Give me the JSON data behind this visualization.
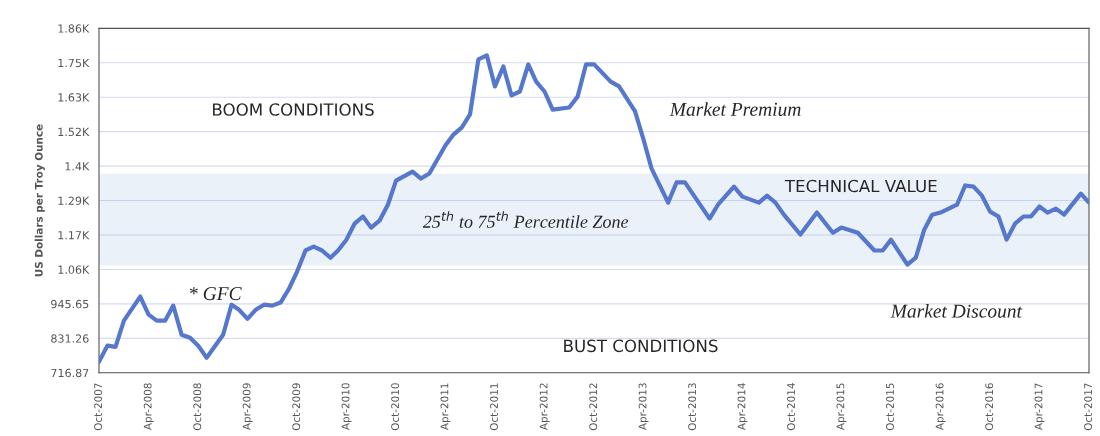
{
  "chart_data": {
    "type": "line",
    "ylabel": "US Dollars per Troy Ounce",
    "x": [
      "2007-10",
      "2007-11",
      "2007-12",
      "2008-01",
      "2008-03",
      "2008-04",
      "2008-05",
      "2008-06",
      "2008-07",
      "2008-08",
      "2008-09",
      "2008-10",
      "2008-11",
      "2009-01",
      "2009-02",
      "2009-03",
      "2009-04",
      "2009-05",
      "2009-06",
      "2009-07",
      "2009-08",
      "2009-09",
      "2009-10",
      "2009-11",
      "2009-12",
      "2010-01",
      "2010-02",
      "2010-03",
      "2010-04",
      "2010-05",
      "2010-06",
      "2010-07",
      "2010-08",
      "2010-09",
      "2010-10",
      "2010-12",
      "2011-01",
      "2011-02",
      "2011-04",
      "2011-05",
      "2011-06",
      "2011-07",
      "2011-08",
      "2011-09",
      "2011-10",
      "2011-11",
      "2011-12",
      "2012-01",
      "2012-02",
      "2012-03",
      "2012-04",
      "2012-05",
      "2012-07",
      "2012-08",
      "2012-09",
      "2012-10",
      "2012-12",
      "2013-01",
      "2013-03",
      "2013-04",
      "2013-05",
      "2013-07",
      "2013-08",
      "2013-09",
      "2013-12",
      "2014-01",
      "2014-03",
      "2014-04",
      "2014-06",
      "2014-07",
      "2014-08",
      "2014-09",
      "2014-11",
      "2015-01",
      "2015-03",
      "2015-04",
      "2015-06",
      "2015-08",
      "2015-09",
      "2015-10",
      "2015-12",
      "2016-01",
      "2016-02",
      "2016-03",
      "2016-04",
      "2016-06",
      "2016-07",
      "2016-08",
      "2016-09",
      "2016-10",
      "2016-11",
      "2016-12",
      "2017-01",
      "2017-02",
      "2017-03",
      "2017-04",
      "2017-05",
      "2017-06",
      "2017-07",
      "2017-09",
      "2017-10"
    ],
    "series": [
      {
        "color": "#5577cc",
        "values": [
          753,
          807,
          803,
          890,
          970,
          910,
          890,
          890,
          940,
          843,
          833,
          807,
          767,
          843,
          943,
          926,
          896,
          926,
          943,
          940,
          950,
          996,
          1053,
          1123,
          1136,
          1123,
          1099,
          1123,
          1159,
          1212,
          1236,
          1199,
          1222,
          1275,
          1355,
          1385,
          1362,
          1379,
          1472,
          1508,
          1532,
          1575,
          1758,
          1771,
          1668,
          1734,
          1638,
          1651,
          1741,
          1684,
          1651,
          1591,
          1598,
          1634,
          1741,
          1741,
          1684,
          1668,
          1585,
          1492,
          1395,
          1282,
          1349,
          1349,
          1229,
          1275,
          1335,
          1302,
          1282,
          1305,
          1282,
          1242,
          1176,
          1249,
          1182,
          1199,
          1182,
          1123,
          1123,
          1159,
          1076,
          1099,
          1192,
          1242,
          1249,
          1275,
          1339,
          1335,
          1305,
          1252,
          1236,
          1159,
          1212,
          1236,
          1236,
          1269,
          1249,
          1262,
          1242,
          1312,
          1282
        ]
      }
    ],
    "xlim": [
      "2007-10",
      "2017-10"
    ],
    "xticks": [
      {
        "value": "2007-10",
        "label": "Oct-2007"
      },
      {
        "value": "2008-04",
        "label": "Apr-2008"
      },
      {
        "value": "2008-10",
        "label": "Oct-2008"
      },
      {
        "value": "2009-04",
        "label": "Apr-2009"
      },
      {
        "value": "2009-10",
        "label": "Oct-2009"
      },
      {
        "value": "2010-04",
        "label": "Apr-2010"
      },
      {
        "value": "2010-10",
        "label": "Oct-2010"
      },
      {
        "value": "2011-04",
        "label": "Apr-2011"
      },
      {
        "value": "2011-10",
        "label": "Oct-2011"
      },
      {
        "value": "2012-04",
        "label": "Apr-2012"
      },
      {
        "value": "2012-10",
        "label": "Oct-2012"
      },
      {
        "value": "2013-04",
        "label": "Apr-2013"
      },
      {
        "value": "2013-10",
        "label": "Oct-2013"
      },
      {
        "value": "2014-04",
        "label": "Apr-2014"
      },
      {
        "value": "2014-10",
        "label": "Oct-2014"
      },
      {
        "value": "2015-04",
        "label": "Apr-2015"
      },
      {
        "value": "2015-10",
        "label": "Oct-2015"
      },
      {
        "value": "2016-04",
        "label": "Apr-2016"
      },
      {
        "value": "2016-10",
        "label": "Oct-2016"
      },
      {
        "value": "2017-04",
        "label": "Apr-2017"
      },
      {
        "value": "2017-10",
        "label": "Oct-2017"
      }
    ],
    "ylim": [
      716.87,
      1860.8
    ],
    "yticks": [
      716.87,
      831.26,
      945.65,
      {
        "value": 1060.04,
        "label": "1.06K"
      },
      {
        "value": 1174.43,
        "label": "1.17K"
      },
      {
        "value": 1288.82,
        "label": "1.29K"
      },
      {
        "value": 1403.21,
        "label": "1.4K"
      },
      {
        "value": 1517.6,
        "label": "1.52K"
      },
      {
        "value": 1632,
        "label": "1.63K"
      },
      {
        "value": 1746.4,
        "label": "1.75K"
      },
      {
        "value": 1860.8,
        "label": "1.86K"
      }
    ],
    "bands": [
      {
        "axis": "y",
        "from": 1076,
        "to": 1375,
        "label": "25$^{th}$ to 75$^{th}$ Percentile Zone",
        "color": "#5b8fc9"
      }
    ],
    "annotations": [
      "BOOM CONDITIONS",
      "Market Premium",
      "TECHNICAL VALUE",
      "* GFC",
      "Market Discount",
      "BUST CONDITIONS"
    ],
    "grid": "y",
    "legend": false,
    "marker": "none",
    "line_style": "solid"
  }
}
